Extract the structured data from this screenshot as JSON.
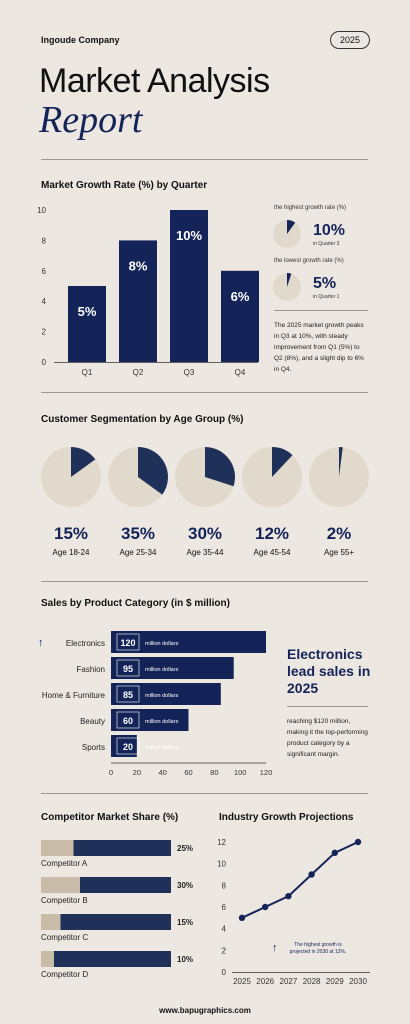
{
  "header": {
    "company": "Ingoude Company",
    "year": "2025"
  },
  "title": {
    "line1": "Market Analysis",
    "line2": "Report"
  },
  "colors": {
    "navy": "#142459",
    "bar_dark": "#1f3159",
    "beige": "#e1d9cc",
    "tan": "#c8bca8",
    "bg": "#ece7e0"
  },
  "growth": {
    "title": "Market Growth Rate (%) by Quarter",
    "highest_caption": "the highest growth rate (%)",
    "highest_value": "10%",
    "highest_sub": "in Quarter 3",
    "lowest_caption": "the lowest growth rate (%)",
    "lowest_value": "5%",
    "lowest_sub": "in Quarter 1",
    "description": "The 2025 market growth peaks in Q3 at 10%, with steady improvement from Q1 (5%) to Q2 (8%), and a slight dip to 6% in Q4."
  },
  "segmentation": {
    "title": "Customer Segmentation by Age Group (%)"
  },
  "sales": {
    "title": "Sales by Product Category (in $ million)",
    "unit": "million dollars",
    "headline": "Electronics lead sales in 2025",
    "description": "reaching $120 million, making it the top-performing product category by a significant margin."
  },
  "competitors": {
    "title": "Competitor Market Share (%)"
  },
  "projections": {
    "title": "Industry Growth Projections",
    "note": "The highest growth is projected in 2030 at 12%."
  },
  "footer": {
    "url": "www.bapugraphics.com"
  },
  "chart_data": [
    {
      "type": "bar",
      "title": "Market Growth Rate (%) by Quarter",
      "categories": [
        "Q1",
        "Q2",
        "Q3",
        "Q4"
      ],
      "values": [
        5,
        8,
        10,
        6
      ],
      "labels": [
        "5%",
        "8%",
        "10%",
        "6%"
      ],
      "yticks": [
        0,
        2,
        4,
        6,
        8,
        10
      ],
      "ylim": [
        0,
        10
      ],
      "grid": false
    },
    {
      "type": "pie",
      "title": "Customer Segmentation by Age Group (%)",
      "categories": [
        "Age 18-24",
        "Age 25-34",
        "Age 35-44",
        "Age 45-54",
        "Age 55+"
      ],
      "values": [
        15,
        35,
        30,
        12,
        2
      ],
      "labels": [
        "15%",
        "35%",
        "30%",
        "12%",
        "2%"
      ]
    },
    {
      "type": "bar",
      "orientation": "horizontal",
      "title": "Sales by Product Category (in $ million)",
      "categories": [
        "Electronics",
        "Fashion",
        "Home & Furniture",
        "Beauty",
        "Sports"
      ],
      "values": [
        120,
        95,
        85,
        60,
        20
      ],
      "xticks": [
        0,
        20,
        40,
        60,
        80,
        100,
        120
      ],
      "xlim": [
        0,
        120
      ]
    },
    {
      "type": "bar",
      "orientation": "horizontal",
      "stacked": true,
      "title": "Competitor Market Share (%)",
      "categories": [
        "Competitor A",
        "Competitor B",
        "Competitor C",
        "Competitor D"
      ],
      "values": [
        25,
        30,
        15,
        10
      ],
      "labels": [
        "25%",
        "30%",
        "15%",
        "10%"
      ]
    },
    {
      "type": "line",
      "title": "Industry Growth Projections",
      "x": [
        2025,
        2026,
        2027,
        2028,
        2029,
        2030
      ],
      "values": [
        5,
        6,
        7,
        9,
        11,
        12
      ],
      "yticks": [
        0,
        2,
        4,
        6,
        8,
        10,
        12
      ],
      "ylim": [
        0,
        12
      ],
      "grid": false
    }
  ]
}
